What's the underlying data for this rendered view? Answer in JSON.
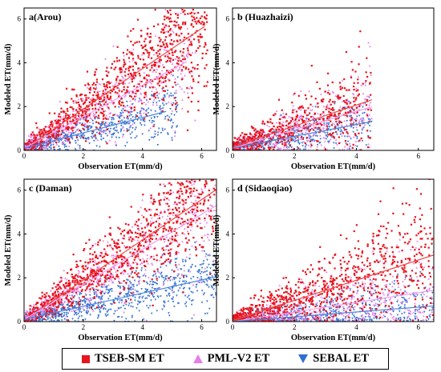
{
  "chart_data": [
    {
      "type": "scatter",
      "title": "a(Arou)",
      "xlabel": "Observation ET(mm/d)",
      "ylabel": "Modeled ET(mm/d)",
      "xlim": [
        0,
        6.5
      ],
      "ylim": [
        0,
        6.5
      ],
      "xticks": [
        "0",
        "2",
        "4",
        "6"
      ],
      "yticks": [
        "0",
        "2",
        "4",
        "6"
      ],
      "grid": false,
      "series": [
        {
          "name": "TSEB-SM ET",
          "count": 900,
          "x_range": [
            0,
            6.2
          ],
          "fit": {
            "slope": 0.92,
            "intercept": 0.05,
            "x_range": [
              0,
              6.1
            ]
          }
        },
        {
          "name": "PML-V2 ET",
          "count": 500,
          "x_range": [
            0,
            5.8
          ],
          "fit": {
            "slope": 0.72,
            "intercept": 0.1,
            "x_range": [
              0,
              5.5
            ]
          }
        },
        {
          "name": "SEBAL ET",
          "count": 600,
          "x_range": [
            0,
            5.2
          ],
          "fit": {
            "slope": 0.35,
            "intercept": 0.1,
            "x_range": [
              0,
              4.8
            ]
          }
        }
      ]
    },
    {
      "type": "scatter",
      "title": "b (Huazhaizi)",
      "xlabel": "Observation ET(mm/d)",
      "ylabel": "Modeled ET(mm/d)",
      "xlim": [
        0,
        6.5
      ],
      "ylim": [
        0,
        6.5
      ],
      "xticks": [
        "0",
        "2",
        "4",
        "6"
      ],
      "yticks": [
        "0",
        "2",
        "4",
        "6"
      ],
      "grid": false,
      "series": [
        {
          "name": "TSEB-SM ET",
          "count": 550,
          "x_range": [
            0,
            4.5
          ],
          "fit": {
            "slope": 0.48,
            "intercept": 0.15,
            "x_range": [
              0,
              4.5
            ]
          }
        },
        {
          "name": "PML-V2 ET",
          "count": 400,
          "x_range": [
            0,
            4.5
          ],
          "fit": {
            "slope": 0.42,
            "intercept": 0.1,
            "x_range": [
              0,
              4.5
            ]
          }
        },
        {
          "name": "SEBAL ET",
          "count": 450,
          "x_range": [
            0,
            4.5
          ],
          "fit": {
            "slope": 0.27,
            "intercept": 0.1,
            "x_range": [
              0,
              4.5
            ]
          }
        }
      ]
    },
    {
      "type": "scatter",
      "title": "c (Daman)",
      "xlabel": "Observation ET(mm/d)",
      "ylabel": "Modeled ET(mm/d)",
      "xlim": [
        0,
        6.5
      ],
      "ylim": [
        0,
        6.5
      ],
      "xticks": [
        "0",
        "2",
        "4",
        "6"
      ],
      "yticks": [
        "0",
        "2",
        "4",
        "6"
      ],
      "grid": false,
      "series": [
        {
          "name": "TSEB-SM ET",
          "count": 900,
          "x_range": [
            0,
            6.5
          ],
          "fit": {
            "slope": 0.92,
            "intercept": 0.05,
            "x_range": [
              0,
              6.5
            ]
          }
        },
        {
          "name": "PML-V2 ET",
          "count": 600,
          "x_range": [
            0,
            6.5
          ],
          "fit": {
            "slope": 0.8,
            "intercept": 0.1,
            "x_range": [
              0,
              6.5
            ]
          }
        },
        {
          "name": "SEBAL ET",
          "count": 800,
          "x_range": [
            0,
            6.5
          ],
          "fit": {
            "slope": 0.3,
            "intercept": 0.1,
            "x_range": [
              0,
              6.5
            ]
          }
        }
      ]
    },
    {
      "type": "scatter",
      "title": "d (Sidaoqiao)",
      "xlabel": "Observation ET(mm/d)",
      "ylabel": "Modeled ET(mm/d)",
      "xlim": [
        0,
        6.5
      ],
      "ylim": [
        0,
        6.5
      ],
      "xticks": [
        "0",
        "2",
        "4",
        "6"
      ],
      "yticks": [
        "0",
        "2",
        "4",
        "6"
      ],
      "grid": false,
      "series": [
        {
          "name": "TSEB-SM ET",
          "count": 900,
          "x_range": [
            0,
            6.5
          ],
          "fit": {
            "slope": 0.46,
            "intercept": 0.05,
            "x_range": [
              0,
              6.5
            ]
          }
        },
        {
          "name": "PML-V2 ET",
          "count": 500,
          "x_range": [
            0,
            6.5
          ],
          "fit": {
            "slope": 0.22,
            "intercept": 0.0,
            "x_range": [
              0,
              6.5
            ]
          }
        },
        {
          "name": "SEBAL ET",
          "count": 600,
          "x_range": [
            0,
            6.5
          ],
          "fit": {
            "slope": 0.11,
            "intercept": 0.0,
            "x_range": [
              0,
              6.5
            ]
          }
        }
      ]
    }
  ],
  "legend": {
    "placement": "bottom",
    "items": [
      {
        "label": "TSEB-SM ET",
        "color": "#e8141e",
        "marker": "square"
      },
      {
        "label": "PML-V2 ET",
        "color": "#e87de8",
        "marker": "triangle-up"
      },
      {
        "label": "SEBAL ET",
        "color": "#2f6fd1",
        "marker": "triangle-down"
      }
    ]
  },
  "colors": {
    "tseb": "#e8141e",
    "pml": "#e87de8",
    "sebal": "#2f6fd1",
    "tseb_line": "#f04848",
    "pml_line": "#f0a0f0",
    "sebal_line": "#4a86e0"
  }
}
